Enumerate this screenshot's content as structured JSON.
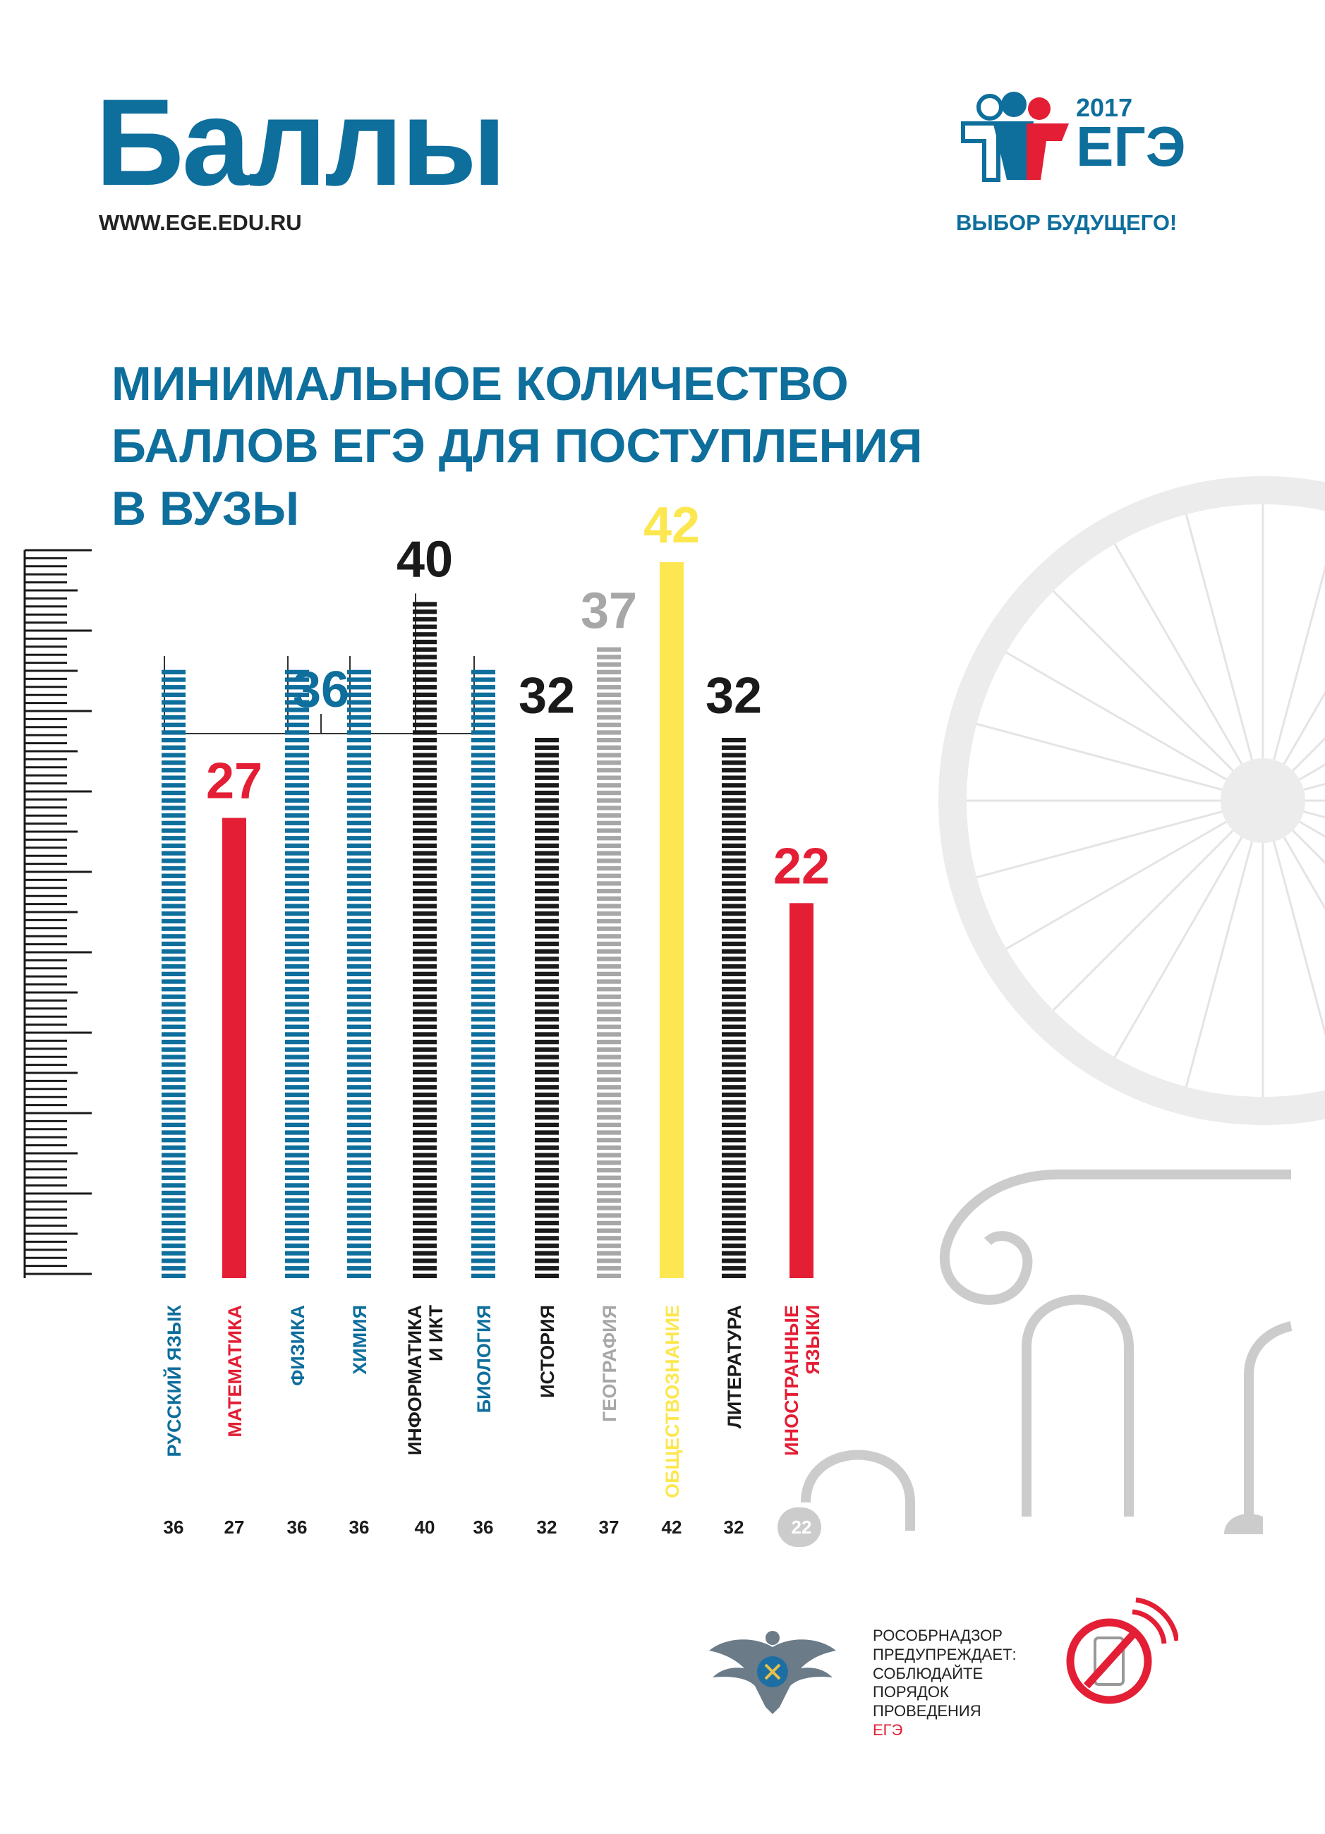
{
  "header": {
    "title": "Баллы",
    "url": "WWW.EGE.EDU.RU"
  },
  "logo": {
    "year": "2017",
    "word": "ЕГЭ",
    "slogan": "ВЫБОР БУДУЩЕГО!"
  },
  "colors": {
    "blue": "#0e6e9c",
    "red": "#e31e35",
    "black": "#1a1a1a",
    "gray": "#a7a7a7",
    "yellow": "#fde750",
    "decor": "#ebebeb"
  },
  "chart_data": {
    "type": "bar",
    "title_lines": [
      "МИНИМАЛЬНОЕ КОЛИЧЕСТВО",
      "БАЛЛОВ ЕГЭ ДЛЯ ПОСТУПЛЕНИЯ",
      "В ВУЗЫ"
    ],
    "ylim": [
      0,
      42
    ],
    "grid": false,
    "bracket_value": "36",
    "bars": [
      {
        "label": [
          "РУССКИЙ ЯЗЫК"
        ],
        "value": 36,
        "color": "blue",
        "style": "striped",
        "show_label": false,
        "bottom": "36"
      },
      {
        "label": [
          "МАТЕМАТИКА"
        ],
        "value": 27,
        "color": "red",
        "style": "solid",
        "show_label": true,
        "bottom": "27"
      },
      {
        "label": [
          "ФИЗИКА"
        ],
        "value": 36,
        "color": "blue",
        "style": "striped",
        "show_label": false,
        "bottom": "36"
      },
      {
        "label": [
          "ХИМИЯ"
        ],
        "value": 36,
        "color": "blue",
        "style": "striped",
        "show_label": false,
        "bottom": "36"
      },
      {
        "label": [
          "ИНФОРМАТИКА",
          "И ИКТ"
        ],
        "value": 40,
        "color": "black",
        "style": "striped",
        "show_label": true,
        "bottom": "40"
      },
      {
        "label": [
          "БИОЛОГИЯ"
        ],
        "value": 36,
        "color": "blue",
        "style": "striped",
        "show_label": false,
        "bottom": "36"
      },
      {
        "label": [
          "ИСТОРИЯ"
        ],
        "value": 32,
        "color": "black",
        "style": "striped",
        "show_label": true,
        "bottom": "32"
      },
      {
        "label": [
          "ГЕОГРАФИЯ"
        ],
        "value": 37,
        "color": "gray",
        "style": "striped",
        "show_label": true,
        "bottom": "37"
      },
      {
        "label": [
          "ОБЩЕСТВОЗНАНИЕ"
        ],
        "value": 42,
        "color": "yellow",
        "style": "solid",
        "show_label": true,
        "bottom": "42"
      },
      {
        "label": [
          "ЛИТЕРАТУРА"
        ],
        "value": 32,
        "color": "black",
        "style": "striped",
        "show_label": true,
        "bottom": "32"
      },
      {
        "label": [
          "ИНОСТРАННЫЕ",
          "ЯЗЫКИ"
        ],
        "value": 22,
        "color": "red",
        "style": "solid",
        "show_label": true,
        "bottom": "22"
      }
    ]
  },
  "footer": {
    "lines": [
      "РОСОБРНАДЗОР",
      "ПРЕДУПРЕЖДАЕТ:",
      "СОБЛЮДАЙТЕ",
      "ПОРЯДОК",
      "ПРОВЕДЕНИЯ"
    ],
    "last_line": "ЕГЭ"
  }
}
